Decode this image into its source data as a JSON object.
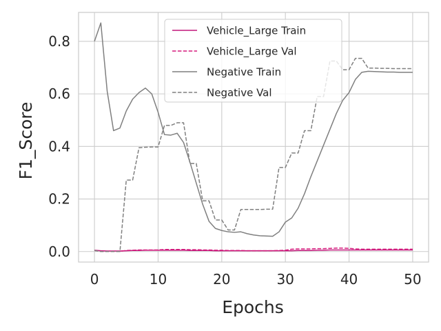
{
  "chart_data": {
    "type": "line",
    "title": "",
    "xlabel": "Epochs",
    "ylabel": "F1_Score",
    "xlim": [
      -2.5,
      52.5
    ],
    "ylim": [
      -0.04,
      0.91
    ],
    "xticks": [
      0,
      10,
      20,
      30,
      40,
      50
    ],
    "yticks": [
      0.0,
      0.2,
      0.4,
      0.6,
      0.8
    ],
    "xtick_labels": [
      "0",
      "10",
      "20",
      "30",
      "40",
      "50"
    ],
    "ytick_labels": [
      "0.0",
      "0.2",
      "0.4",
      "0.6",
      "0.8"
    ],
    "grid": true,
    "legend_position": "top-center",
    "series": [
      {
        "name": "Vehicle_Large Train",
        "color": "#c2177a",
        "dash": "solid",
        "x": [
          0,
          1,
          2,
          3,
          4,
          5,
          6,
          7,
          8,
          9,
          10,
          11,
          12,
          13,
          14,
          15,
          16,
          17,
          18,
          19,
          20,
          21,
          22,
          23,
          24,
          25,
          26,
          27,
          28,
          29,
          30,
          31,
          32,
          33,
          34,
          35,
          36,
          37,
          38,
          39,
          40,
          41,
          42,
          43,
          44,
          45,
          46,
          47,
          48,
          49,
          50
        ],
        "y": [
          0.005,
          0.003,
          0.002,
          0.002,
          0.002,
          0.003,
          0.004,
          0.004,
          0.005,
          0.005,
          0.005,
          0.005,
          0.005,
          0.005,
          0.005,
          0.004,
          0.004,
          0.004,
          0.004,
          0.003,
          0.003,
          0.003,
          0.003,
          0.003,
          0.003,
          0.003,
          0.003,
          0.003,
          0.003,
          0.003,
          0.003,
          0.003,
          0.004,
          0.004,
          0.004,
          0.005,
          0.005,
          0.006,
          0.006,
          0.006,
          0.006,
          0.006,
          0.006,
          0.006,
          0.006,
          0.006,
          0.006,
          0.006,
          0.006,
          0.006,
          0.006
        ]
      },
      {
        "name": "Vehicle_Large Val",
        "color": "#d6197c",
        "dash": "dashed",
        "x": [
          0,
          1,
          2,
          3,
          4,
          5,
          6,
          7,
          8,
          9,
          10,
          11,
          12,
          13,
          14,
          15,
          16,
          17,
          18,
          19,
          20,
          21,
          22,
          23,
          24,
          25,
          26,
          27,
          28,
          29,
          30,
          31,
          32,
          33,
          34,
          35,
          36,
          37,
          38,
          39,
          40,
          41,
          42,
          43,
          44,
          45,
          46,
          47,
          48,
          49,
          50
        ],
        "y": [
          0.004,
          0.001,
          0.001,
          0.001,
          0.001,
          0.004,
          0.005,
          0.006,
          0.006,
          0.006,
          0.006,
          0.008,
          0.008,
          0.008,
          0.008,
          0.007,
          0.007,
          0.006,
          0.006,
          0.005,
          0.005,
          0.004,
          0.004,
          0.004,
          0.003,
          0.003,
          0.003,
          0.003,
          0.003,
          0.004,
          0.005,
          0.009,
          0.01,
          0.01,
          0.01,
          0.011,
          0.011,
          0.012,
          0.013,
          0.013,
          0.012,
          0.01,
          0.009,
          0.009,
          0.009,
          0.009,
          0.009,
          0.009,
          0.009,
          0.009,
          0.009
        ]
      },
      {
        "name": "Negative Train",
        "color": "#7f7f7f",
        "dash": "solid",
        "x": [
          0,
          1,
          2,
          3,
          4,
          5,
          6,
          7,
          8,
          9,
          10,
          11,
          12,
          13,
          14,
          15,
          16,
          17,
          18,
          19,
          20,
          21,
          22,
          23,
          24,
          25,
          26,
          27,
          28,
          29,
          30,
          31,
          32,
          33,
          34,
          35,
          36,
          37,
          38,
          39,
          40,
          41,
          42,
          43,
          44,
          45,
          46,
          47,
          48,
          49,
          50
        ],
        "y": [
          0.8,
          0.87,
          0.61,
          0.46,
          0.47,
          0.535,
          0.58,
          0.605,
          0.622,
          0.6,
          0.53,
          0.445,
          0.443,
          0.45,
          0.415,
          0.34,
          0.26,
          0.18,
          0.115,
          0.088,
          0.08,
          0.075,
          0.073,
          0.075,
          0.068,
          0.063,
          0.06,
          0.059,
          0.058,
          0.075,
          0.112,
          0.128,
          0.165,
          0.22,
          0.285,
          0.345,
          0.405,
          0.465,
          0.525,
          0.575,
          0.605,
          0.655,
          0.682,
          0.686,
          0.685,
          0.684,
          0.683,
          0.683,
          0.682,
          0.682,
          0.682
        ]
      },
      {
        "name": "Negative Val",
        "color": "#7f7f7f",
        "dash": "dashed",
        "x": [
          0,
          1,
          2,
          3,
          4,
          5,
          6,
          7,
          8,
          9,
          10,
          11,
          12,
          13,
          14,
          15,
          16,
          17,
          18,
          19,
          20,
          21,
          22,
          23,
          24,
          25,
          26,
          27,
          28,
          29,
          30,
          31,
          32,
          33,
          34,
          35,
          36,
          37,
          38,
          39,
          40,
          41,
          42,
          43,
          44,
          45,
          46,
          47,
          48,
          49,
          50
        ],
        "y": [
          0.004,
          0.0,
          0.0,
          0.0,
          0.0,
          0.272,
          0.272,
          0.395,
          0.397,
          0.398,
          0.398,
          0.48,
          0.48,
          0.49,
          0.49,
          0.335,
          0.335,
          0.193,
          0.193,
          0.12,
          0.12,
          0.082,
          0.082,
          0.16,
          0.16,
          0.16,
          0.16,
          0.161,
          0.161,
          0.32,
          0.32,
          0.375,
          0.375,
          0.46,
          0.46,
          0.59,
          0.59,
          0.725,
          0.725,
          0.692,
          0.692,
          0.735,
          0.735,
          0.698,
          0.698,
          0.697,
          0.697,
          0.696,
          0.696,
          0.696,
          0.696
        ]
      }
    ]
  }
}
